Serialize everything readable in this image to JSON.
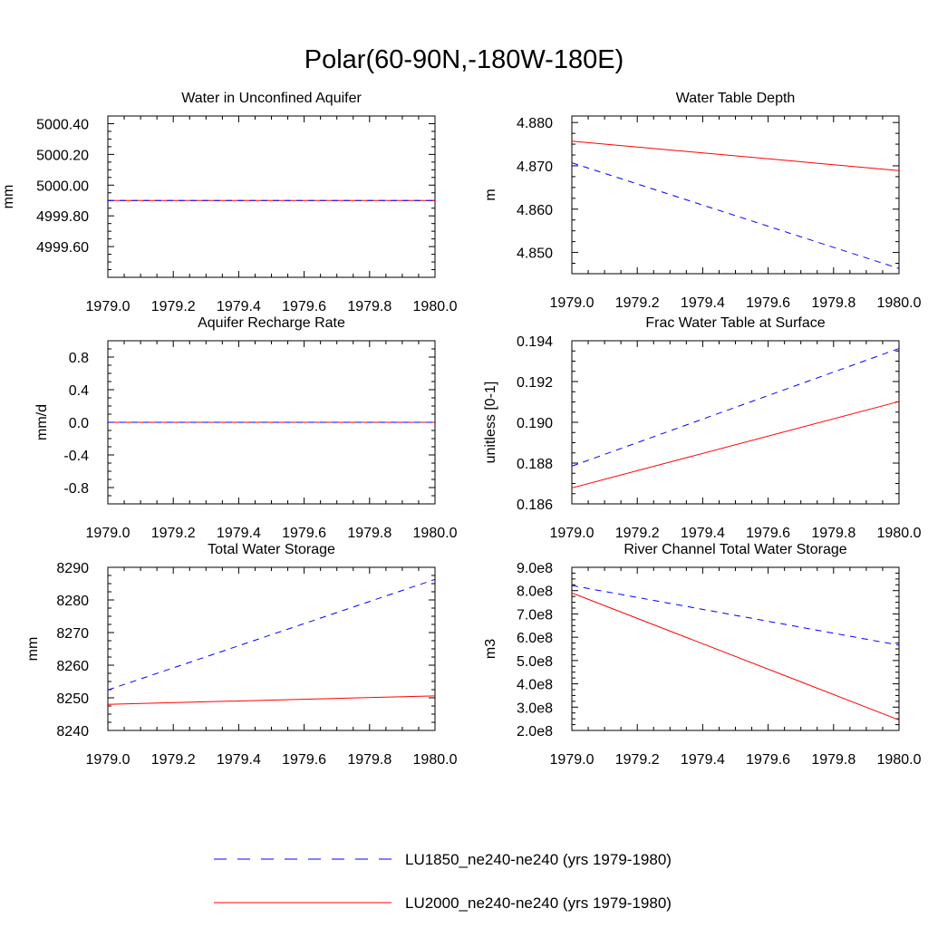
{
  "title": "Polar(60-90N,-180W-180E)",
  "colors": {
    "series1": "#0000ff",
    "series2": "#ff0000",
    "axis": "#000000"
  },
  "legend": [
    {
      "label": "LU1850_ne240-ne240 (yrs 1979-1980)",
      "color": "#0000ff",
      "style": "dashed"
    },
    {
      "label": "LU2000_ne240-ne240 (yrs 1979-1980)",
      "color": "#ff0000",
      "style": "solid"
    }
  ],
  "chart_data": [
    {
      "type": "line",
      "title": "Water in Unconfined Aquifer",
      "xlabel": "",
      "ylabel": "mm",
      "xlim": [
        1979.0,
        1980.0
      ],
      "ylim": [
        4999.4,
        5000.45
      ],
      "xticks": [
        1979.0,
        1979.2,
        1979.4,
        1979.6,
        1979.8,
        1980.0
      ],
      "xtick_labels": [
        "1979.0",
        "1979.2",
        "1979.4",
        "1979.6",
        "1979.8",
        "1980.0"
      ],
      "yticks": [
        4999.6,
        4999.8,
        5000.0,
        5000.2,
        5000.4
      ],
      "ytick_labels": [
        "4999.60",
        "4999.80",
        "5000.00",
        "5000.20",
        "5000.40"
      ],
      "series": [
        {
          "name": "LU1850_ne240-ne240 (yrs 1979-1980)",
          "x": [
            1979.0,
            1980.0
          ],
          "values": [
            4999.9,
            4999.9
          ]
        },
        {
          "name": "LU2000_ne240-ne240 (yrs 1979-1980)",
          "x": [
            1979.0,
            1980.0
          ],
          "values": [
            4999.9,
            4999.9
          ]
        }
      ]
    },
    {
      "type": "line",
      "title": "Water Table Depth",
      "xlabel": "",
      "ylabel": "m",
      "xlim": [
        1979.0,
        1980.0
      ],
      "ylim": [
        4.8451,
        4.8815
      ],
      "xticks": [
        1979.0,
        1979.2,
        1979.4,
        1979.6,
        1979.8,
        1980.0
      ],
      "xtick_labels": [
        "1979.0",
        "1979.2",
        "1979.4",
        "1979.6",
        "1979.8",
        "1980.0"
      ],
      "yticks": [
        4.85,
        4.86,
        4.87,
        4.88
      ],
      "ytick_labels": [
        "4.850",
        "4.860",
        "4.870",
        "4.880"
      ],
      "series": [
        {
          "name": "LU1850_ne240-ne240 (yrs 1979-1980)",
          "x": [
            1979.0,
            1980.0
          ],
          "values": [
            4.8707,
            4.8463
          ]
        },
        {
          "name": "LU2000_ne240-ne240 (yrs 1979-1980)",
          "x": [
            1979.0,
            1980.0
          ],
          "values": [
            4.8757,
            4.8689
          ]
        }
      ]
    },
    {
      "type": "line",
      "title": "Aquifer Recharge Rate",
      "xlabel": "",
      "ylabel": "mm/d",
      "xlim": [
        1979.0,
        1980.0
      ],
      "ylim": [
        -1.0,
        1.0
      ],
      "xticks": [
        1979.0,
        1979.2,
        1979.4,
        1979.6,
        1979.8,
        1980.0
      ],
      "xtick_labels": [
        "1979.0",
        "1979.2",
        "1979.4",
        "1979.6",
        "1979.8",
        "1980.0"
      ],
      "yticks": [
        -0.8,
        -0.4,
        0.0,
        0.4,
        0.8
      ],
      "ytick_labels": [
        "-0.8",
        "-0.4",
        "0.0",
        "0.4",
        "0.8"
      ],
      "series": [
        {
          "name": "LU1850_ne240-ne240 (yrs 1979-1980)",
          "x": [
            1979.0,
            1980.0
          ],
          "values": [
            0.0,
            0.0
          ]
        },
        {
          "name": "LU2000_ne240-ne240 (yrs 1979-1980)",
          "x": [
            1979.0,
            1980.0
          ],
          "values": [
            0.0,
            0.0
          ]
        }
      ]
    },
    {
      "type": "line",
      "title": "Frac Water Table at Surface",
      "xlabel": "",
      "ylabel": "unitless [0-1]",
      "xlim": [
        1979.0,
        1980.0
      ],
      "ylim": [
        0.186,
        0.194
      ],
      "xticks": [
        1979.0,
        1979.2,
        1979.4,
        1979.6,
        1979.8,
        1980.0
      ],
      "xtick_labels": [
        "1979.0",
        "1979.2",
        "1979.4",
        "1979.6",
        "1979.8",
        "1980.0"
      ],
      "yticks": [
        0.186,
        0.188,
        0.19,
        0.192,
        0.194
      ],
      "ytick_labels": [
        "0.186",
        "0.188",
        "0.190",
        "0.192",
        "0.194"
      ],
      "series": [
        {
          "name": "LU1850_ne240-ne240 (yrs 1979-1980)",
          "x": [
            1979.0,
            1980.0
          ],
          "values": [
            0.18785,
            0.19362
          ]
        },
        {
          "name": "LU2000_ne240-ne240 (yrs 1979-1980)",
          "x": [
            1979.0,
            1980.0
          ],
          "values": [
            0.18678,
            0.19102
          ]
        }
      ]
    },
    {
      "type": "line",
      "title": "Total Water Storage",
      "xlabel": "",
      "ylabel": "mm",
      "xlim": [
        1979.0,
        1980.0
      ],
      "ylim": [
        8240,
        8290
      ],
      "xticks": [
        1979.0,
        1979.2,
        1979.4,
        1979.6,
        1979.8,
        1980.0
      ],
      "xtick_labels": [
        "1979.0",
        "1979.2",
        "1979.4",
        "1979.6",
        "1979.8",
        "1980.0"
      ],
      "yticks": [
        8240,
        8250,
        8260,
        8270,
        8280,
        8290
      ],
      "ytick_labels": [
        "8240",
        "8250",
        "8260",
        "8270",
        "8280",
        "8290"
      ],
      "series": [
        {
          "name": "LU1850_ne240-ne240 (yrs 1979-1980)",
          "x": [
            1979.0,
            1980.0
          ],
          "values": [
            8252.4,
            8286.3
          ]
        },
        {
          "name": "LU2000_ne240-ne240 (yrs 1979-1980)",
          "x": [
            1979.0,
            1980.0
          ],
          "values": [
            8248.0,
            8250.6
          ]
        }
      ]
    },
    {
      "type": "line",
      "title": "River Channel Total Water Storage",
      "xlabel": "",
      "ylabel": "m3",
      "xlim": [
        1979.0,
        1980.0
      ],
      "ylim": [
        200000000,
        900000000
      ],
      "xticks": [
        1979.0,
        1979.2,
        1979.4,
        1979.6,
        1979.8,
        1980.0
      ],
      "xtick_labels": [
        "1979.0",
        "1979.2",
        "1979.4",
        "1979.6",
        "1979.8",
        "1980.0"
      ],
      "yticks": [
        200000000,
        300000000,
        400000000,
        500000000,
        600000000,
        700000000,
        800000000,
        900000000
      ],
      "ytick_labels": [
        "2.0e8",
        "3.0e8",
        "4.0e8",
        "5.0e8",
        "6.0e8",
        "7.0e8",
        "8.0e8",
        "9.0e8"
      ],
      "series": [
        {
          "name": "LU1850_ne240-ne240 (yrs 1979-1980)",
          "x": [
            1979.0,
            1980.0
          ],
          "values": [
            822000000,
            566000000
          ]
        },
        {
          "name": "LU2000_ne240-ne240 (yrs 1979-1980)",
          "x": [
            1979.0,
            1980.0
          ],
          "values": [
            790000000,
            245000000
          ]
        }
      ]
    }
  ]
}
